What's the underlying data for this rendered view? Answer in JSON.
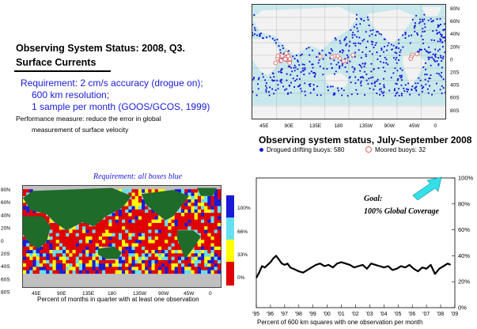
{
  "header": {
    "title": "Observing System Status:  2008, Q3.",
    "subtitle": "Surface Currents"
  },
  "requirement": {
    "line1": "Requirement: 2 cm/s accuracy (drogue on);",
    "line2": "600 km resolution;",
    "line3": "1 sample per month (GOOS/GCOS, 1999)"
  },
  "performance": {
    "line1": "Performance measure: reduce the error in global",
    "line2": "measurement of surface velocity"
  },
  "colors": {
    "ocean": "#c8e8ec",
    "land": "#1f6b2a",
    "buoy": "#1a1ad8",
    "moored": "#e06060",
    "red": "#e00000",
    "yellow": "#ffff00",
    "cyan": "#66e0f0",
    "blue": "#1a1ad8",
    "grey": "#c0c0c0",
    "arrow": "#33e0e8"
  },
  "top_map": {
    "lat_labels": [
      "80N",
      "60N",
      "40N",
      "20N",
      "0",
      "20S",
      "40S",
      "60S",
      "80S"
    ],
    "lon_labels": [
      "45E",
      "90E",
      "135E",
      "180",
      "135W",
      "90W",
      "45W",
      "0"
    ],
    "status_title": "Observing system status, July-September 2008",
    "legend_drifting": "Drogued drifting buoys: 580",
    "legend_moored": "Moored buoys: 32",
    "drifting_count": 580,
    "moored_count": 32
  },
  "coverage_map": {
    "requirement_label": "Requirement: all boxes blue",
    "lat_labels": [
      "80N",
      "60N",
      "40N",
      "20N",
      "0",
      "20S",
      "40S",
      "60S",
      "80S"
    ],
    "lon_labels": [
      "45E",
      "90E",
      "135E",
      "180",
      "135W",
      "90W",
      "45W",
      "0"
    ],
    "colorbar_labels": [
      "100%",
      "66%",
      "33%",
      "0%"
    ],
    "caption": "Percent of months in quarter with at least one observation"
  },
  "chart_data": {
    "type": "line",
    "title": "",
    "xlabel": "Percent of 600 km squares with one observation per month",
    "ylabel": "",
    "annotation_line1": "Goal:",
    "annotation_line2": "100% Global Coverage",
    "x_tick_labels": [
      "'95",
      "'96",
      "'97",
      "'98",
      "'99",
      "'00",
      "'01",
      "'02",
      "'03",
      "'04",
      "'05",
      "'06",
      "'07",
      "'08",
      "'09"
    ],
    "y_tick_labels": [
      "0%",
      "20%",
      "40%",
      "60%",
      "80%",
      "100%"
    ],
    "xlim": [
      1995,
      2009
    ],
    "ylim": [
      0,
      100
    ],
    "grid": false,
    "series": [
      {
        "x": [
          1995.0,
          1995.2,
          1995.4,
          1995.6,
          1995.8,
          1996.0,
          1996.2,
          1996.4,
          1996.6,
          1996.8,
          1997.0,
          1997.2,
          1997.4,
          1997.6,
          1997.8,
          1998.0,
          1998.3,
          1998.6,
          1998.9,
          1999.2,
          1999.5,
          1999.8,
          2000.1,
          2000.4,
          2000.7,
          2001.0,
          2001.3,
          2001.6,
          2001.9,
          2002.2,
          2002.5,
          2002.8,
          2003.1,
          2003.4,
          2003.7,
          2004.0,
          2004.3,
          2004.6,
          2004.9,
          2005.2,
          2005.5,
          2005.8,
          2006.1,
          2006.4,
          2006.7,
          2007.0,
          2007.3,
          2007.6,
          2007.9,
          2008.2,
          2008.5,
          2008.7
        ],
        "y": [
          23,
          27,
          32,
          31,
          33,
          35,
          38,
          40,
          37,
          34,
          33,
          34,
          31,
          30,
          29,
          28,
          27,
          29,
          31,
          33,
          34,
          32,
          33,
          31,
          34,
          35,
          34,
          33,
          31,
          32,
          33,
          30,
          34,
          33,
          32,
          31,
          32,
          29,
          30,
          32,
          31,
          33,
          30,
          28,
          31,
          30,
          33,
          26,
          30,
          32,
          34,
          33
        ]
      }
    ]
  }
}
